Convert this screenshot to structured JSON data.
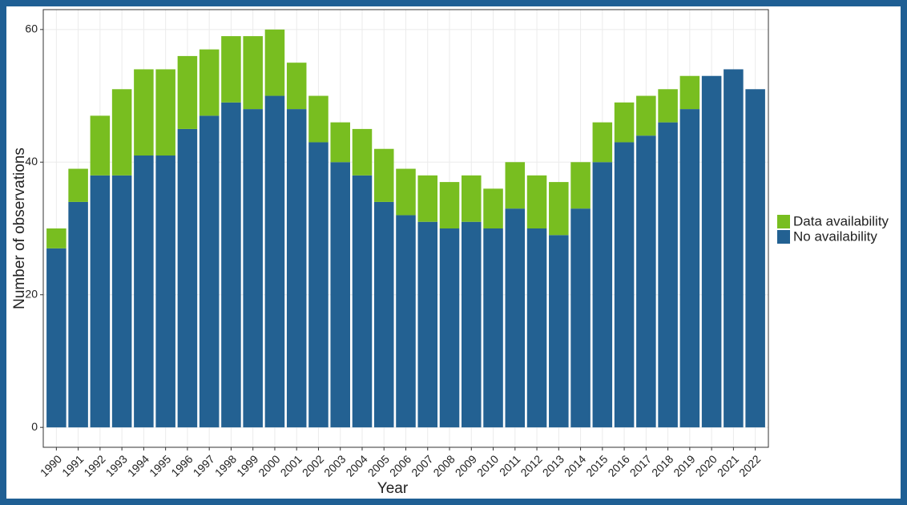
{
  "chart_data": {
    "type": "stacked_bar",
    "x_label": "Year",
    "y_label": "Number of observations",
    "categories": [
      "1990",
      "1991",
      "1992",
      "1993",
      "1994",
      "1995",
      "1996",
      "1997",
      "1998",
      "1999",
      "2000",
      "2001",
      "2002",
      "2003",
      "2004",
      "2005",
      "2006",
      "2007",
      "2008",
      "2009",
      "2010",
      "2011",
      "2012",
      "2013",
      "2014",
      "2015",
      "2016",
      "2017",
      "2018",
      "2019",
      "2020",
      "2021",
      "2022"
    ],
    "series": [
      {
        "name": "Data availability",
        "color": "#78be20",
        "values": [
          3,
          5,
          9,
          13,
          13,
          13,
          11,
          10,
          10,
          11,
          10,
          7,
          7,
          6,
          7,
          8,
          7,
          7,
          7,
          7,
          6,
          7,
          8,
          8,
          7,
          6,
          6,
          6,
          5,
          5,
          0,
          0,
          0
        ]
      },
      {
        "name": "No availability",
        "color": "#236192",
        "values": [
          27,
          34,
          38,
          38,
          41,
          41,
          45,
          47,
          49,
          48,
          50,
          48,
          43,
          40,
          38,
          34,
          32,
          31,
          30,
          31,
          30,
          33,
          30,
          29,
          33,
          40,
          43,
          44,
          46,
          48,
          53,
          54,
          51
        ]
      }
    ],
    "ylim": [
      -3,
      63
    ],
    "yticks": [
      0,
      20,
      40,
      60
    ],
    "grid": true,
    "legend": "right"
  }
}
